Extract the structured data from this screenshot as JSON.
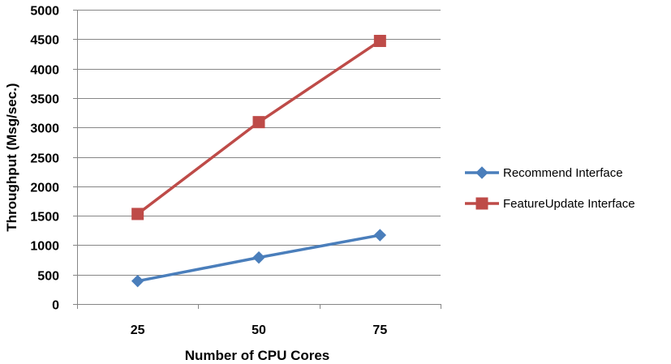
{
  "chart_data": {
    "type": "line",
    "title": "",
    "xlabel": "Number of CPU Cores",
    "ylabel": "Throughput (Msg/sec.)",
    "categories": [
      "25",
      "50",
      "75"
    ],
    "x_tick_labels": [
      "25",
      "50",
      "75"
    ],
    "y_tick_labels": [
      "0",
      "500",
      "1000",
      "1500",
      "2000",
      "2500",
      "3000",
      "3500",
      "4000",
      "4500",
      "5000"
    ],
    "ylim": [
      0,
      5000
    ],
    "y_tick_step": 500,
    "grid": "horizontal",
    "legend_position": "right",
    "series": [
      {
        "name": "Recommend Interface",
        "color": "#4a7ebb",
        "marker": "diamond",
        "values": [
          390,
          790,
          1170
        ]
      },
      {
        "name": "FeatureUpdate Interface",
        "color": "#be4b48",
        "marker": "square",
        "values": [
          1530,
          3090,
          4470
        ]
      }
    ]
  }
}
